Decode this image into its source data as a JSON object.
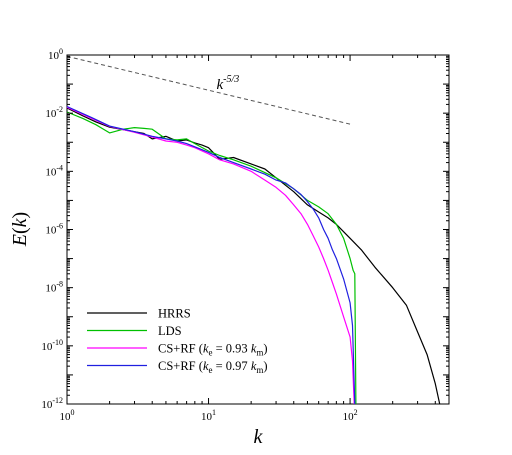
{
  "chart_data": {
    "type": "line",
    "title": "",
    "xlabel": "k",
    "ylabel": "E(k)",
    "xscale": "log",
    "yscale": "log",
    "xlim": [
      1,
      500
    ],
    "ylim": [
      1e-12,
      1
    ],
    "grid": false,
    "legend_position": "bottom-left",
    "x_ticks": [
      {
        "value": 1,
        "base": "10",
        "exp": "0"
      },
      {
        "value": 10,
        "base": "10",
        "exp": "1"
      },
      {
        "value": 100,
        "base": "10",
        "exp": "2"
      }
    ],
    "y_ticks": [
      {
        "value": 1,
        "base": "10",
        "exp": "0"
      },
      {
        "value": 0.01,
        "base": "10",
        "exp": "-2"
      },
      {
        "value": 0.0001,
        "base": "10",
        "exp": "-4"
      },
      {
        "value": 1e-06,
        "base": "10",
        "exp": "-6"
      },
      {
        "value": 1e-08,
        "base": "10",
        "exp": "-8"
      },
      {
        "value": 1e-10,
        "base": "10",
        "exp": "-10"
      },
      {
        "value": 1e-12,
        "base": "10",
        "exp": "-12"
      }
    ],
    "annotations": [
      {
        "text_base": "k",
        "text_sup": "-5/3",
        "style": "dashed",
        "color": "#555555",
        "x": [
          1,
          100
        ],
        "y": [
          0.9,
          0.0042
        ],
        "label_at": [
          15,
          0.11
        ]
      }
    ],
    "series": [
      {
        "name": "HRRS",
        "color": "#000000",
        "x": [
          1,
          1.3,
          1.6,
          2,
          2.5,
          3,
          3.5,
          4,
          5,
          6,
          7,
          8,
          9,
          10,
          12,
          15,
          20,
          25,
          30,
          40,
          50,
          60,
          70,
          80,
          100,
          120,
          150,
          200,
          250,
          300,
          350,
          400,
          430
        ],
        "y": [
          0.015,
          0.008,
          0.005,
          0.0033,
          0.0027,
          0.0023,
          0.002,
          0.0013,
          0.0016,
          0.0011,
          0.0012,
          0.00095,
          0.0008,
          0.00065,
          0.00026,
          0.0003,
          0.00018,
          0.00012,
          6e-05,
          2e-05,
          7e-06,
          4e-06,
          2.5e-06,
          1.5e-06,
          5e-07,
          2e-07,
          5e-08,
          1e-08,
          2.5e-09,
          3e-10,
          5e-11,
          5e-12,
          1e-12
        ]
      },
      {
        "name": "LDS",
        "color": "#00c000",
        "x": [
          1,
          1.3,
          1.6,
          2,
          2.5,
          3,
          3.5,
          4,
          5,
          6,
          7,
          8,
          10,
          12,
          15,
          20,
          30,
          40,
          50,
          60,
          70,
          80,
          90,
          100,
          105,
          108,
          110
        ],
        "y": [
          0.011,
          0.0065,
          0.004,
          0.0021,
          0.0028,
          0.0032,
          0.003,
          0.0028,
          0.0013,
          0.0012,
          0.0013,
          0.0009,
          0.0005,
          0.00035,
          0.00025,
          0.00015,
          6e-05,
          2.5e-05,
          1e-05,
          6e-06,
          3.5e-06,
          1.5e-06,
          5e-07,
          1e-07,
          4e-08,
          3e-08,
          1e-12
        ]
      },
      {
        "name": "CS+RF",
        "name_sub1": "e",
        "name_mid": " = 0.93 ",
        "name_var": "k",
        "name_sub2": "m",
        "color": "#ff00ff",
        "x": [
          1,
          1.5,
          2,
          3,
          4,
          5,
          6,
          7,
          8,
          10,
          12,
          15,
          20,
          25,
          30,
          35,
          40,
          45,
          50,
          55,
          60,
          65,
          70,
          75,
          80,
          90,
          100,
          104,
          107
        ],
        "y": [
          0.016,
          0.0065,
          0.0035,
          0.0022,
          0.0015,
          0.0011,
          0.001,
          0.0008,
          0.00065,
          0.0004,
          0.00025,
          0.00018,
          0.0001,
          5e-05,
          2.8e-05,
          1.5e-05,
          7e-06,
          3.5e-06,
          1.5e-06,
          6e-07,
          2.5e-07,
          1e-07,
          4e-08,
          1.5e-08,
          6e-09,
          1e-09,
          2e-10,
          3e-11,
          1e-12
        ]
      },
      {
        "name": "CS+RF",
        "name_sub1": "e",
        "name_mid": " = 0.97 ",
        "name_var": "k",
        "name_sub2": "m",
        "color": "#2020e0",
        "x": [
          1,
          1.5,
          2,
          3,
          4,
          5,
          6,
          7,
          8,
          10,
          12,
          15,
          20,
          25,
          30,
          35,
          40,
          45,
          50,
          55,
          60,
          65,
          70,
          75,
          80,
          90,
          100,
          104,
          108
        ],
        "y": [
          0.017,
          0.007,
          0.0036,
          0.0023,
          0.0016,
          0.0013,
          0.0011,
          0.0009,
          0.0007,
          0.00045,
          0.0003,
          0.0002,
          0.00012,
          8e-05,
          5e-05,
          4e-05,
          2.5e-05,
          1.6e-05,
          9e-06,
          5e-06,
          2.5e-06,
          1e-06,
          5e-07,
          2e-07,
          1e-07,
          2e-08,
          3e-09,
          5e-10,
          1e-12
        ]
      }
    ]
  }
}
